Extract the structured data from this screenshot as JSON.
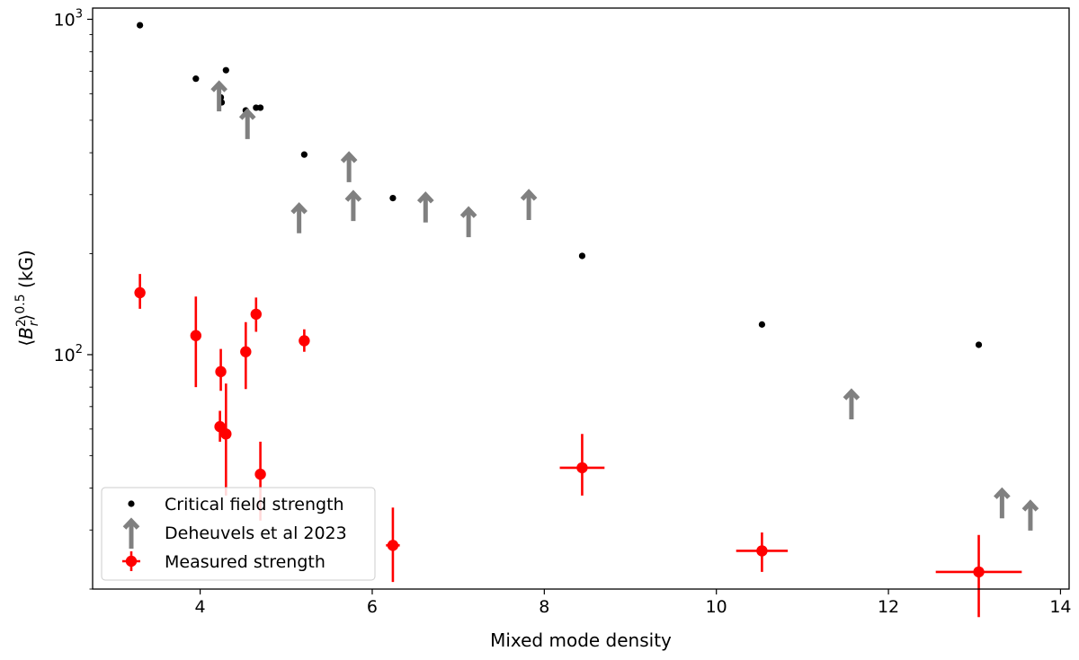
{
  "chart_data": {
    "type": "scatter",
    "title": "",
    "xlabel": "Mixed mode density",
    "ylabel_parts": {
      "open": "⟨",
      "base": "B",
      "sub": "r",
      "sup": "2",
      "close": "⟩",
      "exp": "0.5",
      "unit": "(kG)"
    },
    "xlim": [
      2.75,
      14.1
    ],
    "ylim": [
      20,
      1080
    ],
    "yscale": "log",
    "grid": false,
    "legend_position": "lower-left",
    "x_ticks": [
      {
        "value": 4,
        "label": "4"
      },
      {
        "value": 6,
        "label": "6"
      },
      {
        "value": 8,
        "label": "8"
      },
      {
        "value": 10,
        "label": "10"
      },
      {
        "value": 12,
        "label": "12"
      },
      {
        "value": 14,
        "label": "14"
      }
    ],
    "y_ticks": [
      {
        "value": 100,
        "base": "10",
        "exp": "2"
      },
      {
        "value": 1000,
        "base": "10",
        "exp": "3"
      }
    ],
    "series": [
      {
        "name": "Critical field strength",
        "marker": "dot",
        "color": "#000000",
        "points": [
          {
            "x": 3.3,
            "y": 960
          },
          {
            "x": 3.95,
            "y": 665
          },
          {
            "x": 4.24,
            "y": 585
          },
          {
            "x": 4.25,
            "y": 565
          },
          {
            "x": 4.3,
            "y": 705
          },
          {
            "x": 4.53,
            "y": 535
          },
          {
            "x": 4.65,
            "y": 545
          },
          {
            "x": 4.7,
            "y": 545
          },
          {
            "x": 5.21,
            "y": 395
          },
          {
            "x": 6.24,
            "y": 293
          },
          {
            "x": 8.44,
            "y": 197
          },
          {
            "x": 10.53,
            "y": 123
          },
          {
            "x": 13.05,
            "y": 107
          }
        ]
      },
      {
        "name": "Deheuvels et al 2023",
        "marker": "up-arrow",
        "color": "#808080",
        "points": [
          {
            "x": 4.22,
            "y": 605
          },
          {
            "x": 4.55,
            "y": 500
          },
          {
            "x": 5.15,
            "y": 262
          },
          {
            "x": 5.73,
            "y": 372
          },
          {
            "x": 5.78,
            "y": 285
          },
          {
            "x": 6.62,
            "y": 282
          },
          {
            "x": 7.12,
            "y": 255
          },
          {
            "x": 7.82,
            "y": 287
          },
          {
            "x": 11.57,
            "y": 73
          },
          {
            "x": 13.32,
            "y": 37
          },
          {
            "x": 13.65,
            "y": 34
          }
        ]
      },
      {
        "name": "Measured strength",
        "marker": "errorbar",
        "color": "#ff0000",
        "points": [
          {
            "x": 3.3,
            "y": 153,
            "xerr": 0.04,
            "ylo": 137,
            "yhi": 174
          },
          {
            "x": 3.95,
            "y": 114,
            "xerr": 0.05,
            "ylo": 80,
            "yhi": 149
          },
          {
            "x": 4.24,
            "y": 89,
            "xerr": 0.03,
            "ylo": 78,
            "yhi": 104
          },
          {
            "x": 4.23,
            "y": 61,
            "xerr": 0.03,
            "ylo": 55,
            "yhi": 68
          },
          {
            "x": 4.3,
            "y": 58,
            "xerr": 0.03,
            "ylo": 38,
            "yhi": 82
          },
          {
            "x": 4.53,
            "y": 102,
            "xerr": 0.05,
            "ylo": 79,
            "yhi": 125
          },
          {
            "x": 4.65,
            "y": 132,
            "xerr": 0.05,
            "ylo": 117,
            "yhi": 148
          },
          {
            "x": 4.7,
            "y": 44,
            "xerr": 0.02,
            "ylo": 32,
            "yhi": 55
          },
          {
            "x": 5.21,
            "y": 110,
            "xerr": 0.06,
            "ylo": 102,
            "yhi": 119
          },
          {
            "x": 6.24,
            "y": 27,
            "xerr": 0.08,
            "ylo": 21,
            "yhi": 35
          },
          {
            "x": 8.44,
            "y": 46,
            "xerr": 0.26,
            "ylo": 38,
            "yhi": 58
          },
          {
            "x": 10.53,
            "y": 26,
            "xerr": 0.3,
            "ylo": 22.5,
            "yhi": 29.5
          },
          {
            "x": 13.05,
            "y": 22.5,
            "xerr": 0.5,
            "ylo": 16.5,
            "yhi": 29
          }
        ]
      }
    ]
  }
}
